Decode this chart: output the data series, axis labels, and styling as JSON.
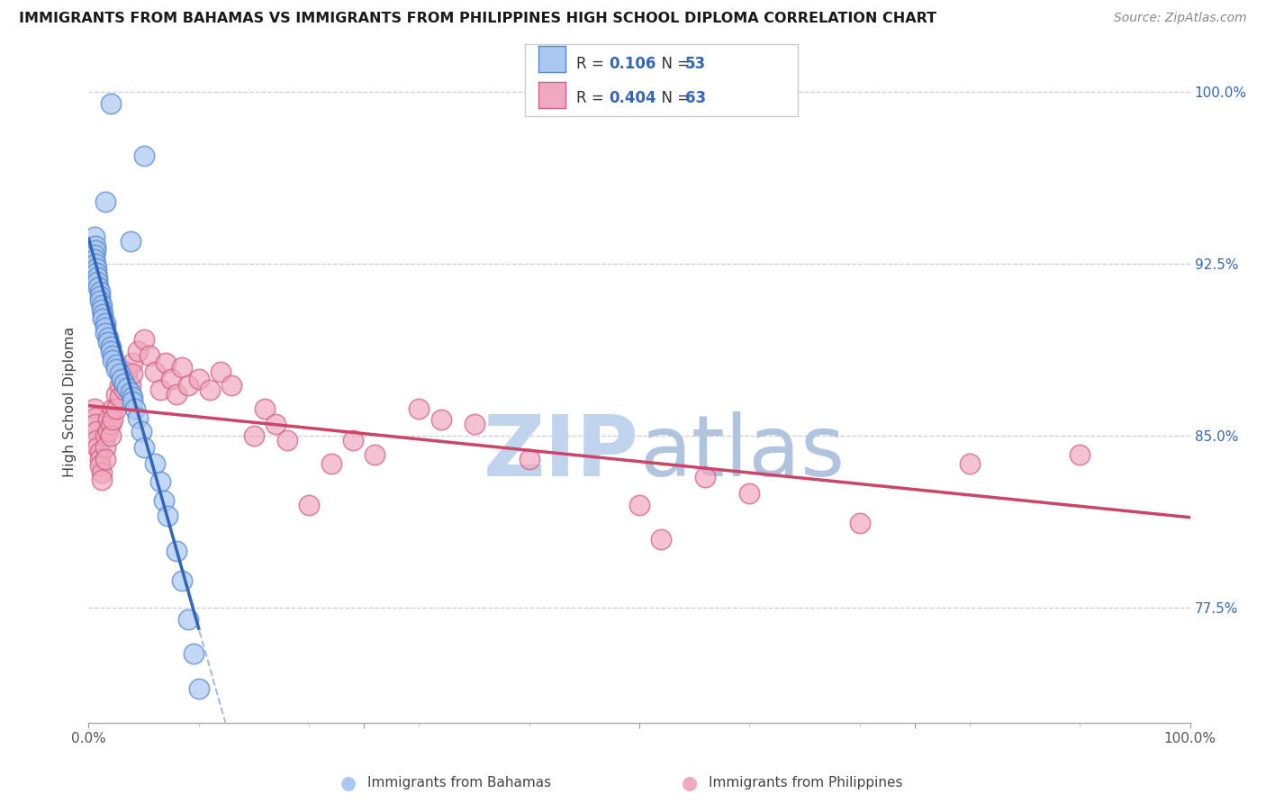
{
  "title": "IMMIGRANTS FROM BAHAMAS VS IMMIGRANTS FROM PHILIPPINES HIGH SCHOOL DIPLOMA CORRELATION CHART",
  "source": "Source: ZipAtlas.com",
  "ylabel": "High School Diploma",
  "legend_blue_r": "0.106",
  "legend_blue_n": "53",
  "legend_pink_r": "0.404",
  "legend_pink_n": "63",
  "bottom_label_blue": "Immigrants from Bahamas",
  "bottom_label_pink": "Immigrants from Philippines",
  "blue_fill": "#aac8f0",
  "pink_fill": "#f0a8c0",
  "blue_edge": "#5588cc",
  "pink_edge": "#d06080",
  "blue_trend_color": "#3366bb",
  "pink_trend_color": "#cc4466",
  "gray_dash_color": "#aabbdd",
  "watermark_color": "#ccddf5",
  "right_tick_color": "#3366bb",
  "xlim": [
    0.0,
    1.0
  ],
  "ylim": [
    0.725,
    1.005
  ],
  "right_ytick_values": [
    100.0,
    92.5,
    85.0,
    77.5
  ],
  "blue_x": [
    0.02,
    0.05,
    0.015,
    0.038,
    0.005,
    0.006,
    0.006,
    0.005,
    0.005,
    0.006,
    0.007,
    0.007,
    0.008,
    0.008,
    0.009,
    0.01,
    0.01,
    0.01,
    0.012,
    0.012,
    0.013,
    0.013,
    0.015,
    0.015,
    0.015,
    0.018,
    0.018,
    0.02,
    0.02,
    0.022,
    0.022,
    0.025,
    0.025,
    0.028,
    0.03,
    0.032,
    0.035,
    0.038,
    0.04,
    0.04,
    0.042,
    0.045,
    0.048,
    0.05,
    0.06,
    0.065,
    0.068,
    0.072,
    0.08,
    0.085,
    0.09,
    0.095,
    0.1
  ],
  "blue_y": [
    0.995,
    0.972,
    0.952,
    0.935,
    0.937,
    0.933,
    0.931,
    0.929,
    0.927,
    0.925,
    0.923,
    0.921,
    0.919,
    0.917,
    0.915,
    0.913,
    0.911,
    0.909,
    0.907,
    0.905,
    0.903,
    0.901,
    0.899,
    0.897,
    0.895,
    0.893,
    0.891,
    0.889,
    0.887,
    0.885,
    0.883,
    0.881,
    0.879,
    0.877,
    0.875,
    0.873,
    0.871,
    0.869,
    0.867,
    0.865,
    0.862,
    0.858,
    0.852,
    0.845,
    0.838,
    0.83,
    0.822,
    0.815,
    0.8,
    0.787,
    0.77,
    0.755,
    0.74
  ],
  "pink_x": [
    0.005,
    0.006,
    0.006,
    0.007,
    0.007,
    0.008,
    0.01,
    0.01,
    0.01,
    0.012,
    0.012,
    0.015,
    0.015,
    0.015,
    0.018,
    0.018,
    0.02,
    0.02,
    0.022,
    0.022,
    0.025,
    0.025,
    0.028,
    0.028,
    0.03,
    0.032,
    0.035,
    0.038,
    0.04,
    0.04,
    0.045,
    0.05,
    0.055,
    0.06,
    0.065,
    0.07,
    0.075,
    0.08,
    0.085,
    0.09,
    0.1,
    0.11,
    0.12,
    0.13,
    0.15,
    0.16,
    0.17,
    0.18,
    0.2,
    0.22,
    0.24,
    0.26,
    0.3,
    0.32,
    0.35,
    0.4,
    0.5,
    0.52,
    0.56,
    0.6,
    0.7,
    0.8,
    0.9
  ],
  "pink_y": [
    0.862,
    0.858,
    0.855,
    0.852,
    0.848,
    0.845,
    0.843,
    0.84,
    0.837,
    0.834,
    0.831,
    0.85,
    0.845,
    0.84,
    0.857,
    0.852,
    0.855,
    0.85,
    0.862,
    0.857,
    0.868,
    0.862,
    0.872,
    0.867,
    0.875,
    0.87,
    0.878,
    0.872,
    0.882,
    0.877,
    0.887,
    0.892,
    0.885,
    0.878,
    0.87,
    0.882,
    0.875,
    0.868,
    0.88,
    0.872,
    0.875,
    0.87,
    0.878,
    0.872,
    0.85,
    0.862,
    0.855,
    0.848,
    0.82,
    0.838,
    0.848,
    0.842,
    0.862,
    0.857,
    0.855,
    0.84,
    0.82,
    0.805,
    0.832,
    0.825,
    0.812,
    0.838,
    0.842
  ]
}
